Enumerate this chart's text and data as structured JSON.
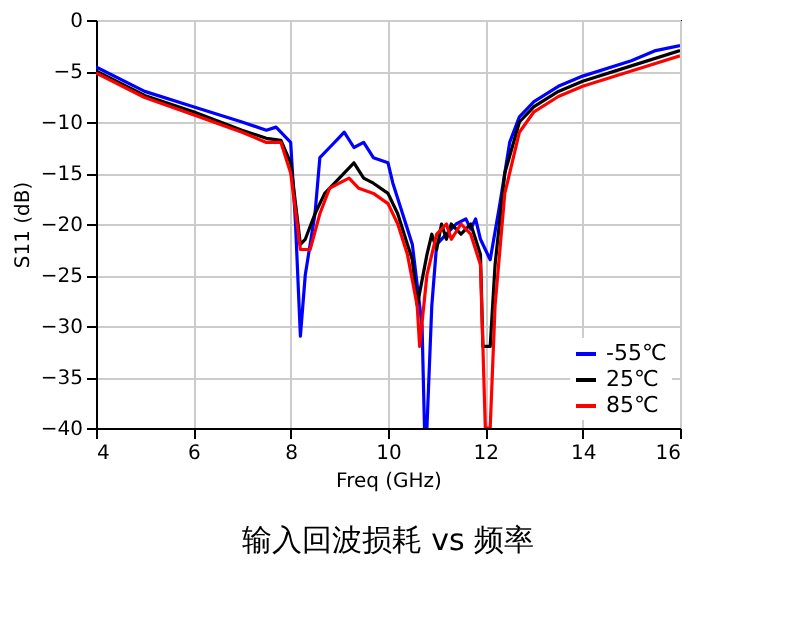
{
  "chart_data": {
    "type": "line",
    "title": "输入回波损耗 vs 频率",
    "xlabel": "Freq (GHz)",
    "ylabel": "S11 (dB)",
    "xlim": [
      4,
      16
    ],
    "xticks": [
      4,
      6,
      8,
      10,
      12,
      14,
      16
    ],
    "ylim": [
      -40,
      0
    ],
    "yticks": [
      -40,
      -35,
      -30,
      -25,
      -20,
      -15,
      -10,
      -5,
      0
    ],
    "grid": true,
    "legend": "bottom right",
    "line_style": "solid",
    "marker": "none",
    "series": [
      {
        "name": "-55℃",
        "color": "#0000ff",
        "x": [
          4,
          5,
          6,
          7,
          7.5,
          7.7,
          8,
          8.05,
          8.1,
          8.2,
          8.3,
          8.5,
          8.6,
          8.8,
          9,
          9.1,
          9.3,
          9.5,
          9.7,
          10,
          10.1,
          10.3,
          10.5,
          10.7,
          10.75,
          10.8,
          10.9,
          11,
          11.2,
          11.4,
          11.6,
          11.7,
          11.8,
          11.9,
          12,
          12.1,
          12.3,
          12.5,
          12.7,
          13,
          13.5,
          14,
          15,
          15.5,
          16
        ],
        "values": [
          -4.6,
          -7,
          -8.5,
          -10,
          -10.8,
          -10.5,
          -12,
          -16,
          -20,
          -31,
          -25,
          -19,
          -13.5,
          -12.5,
          -11.5,
          -11,
          -12.5,
          -12,
          -13.5,
          -14,
          -16,
          -19,
          -22,
          -30,
          -40,
          -40,
          -28,
          -22,
          -21,
          -20,
          -19.5,
          -20.5,
          -19.5,
          -21.5,
          -22.5,
          -23.5,
          -18,
          -12,
          -9.5,
          -8,
          -6.5,
          -5.5,
          -4,
          -3,
          -2.5
        ]
      },
      {
        "name": "25℃",
        "color": "#000000",
        "x": [
          4,
          5,
          6,
          7,
          7.5,
          7.8,
          8,
          8.1,
          8.2,
          8.3,
          8.5,
          8.7,
          9,
          9.3,
          9.5,
          9.7,
          10,
          10.2,
          10.4,
          10.5,
          10.6,
          10.7,
          10.8,
          10.9,
          11,
          11.1,
          11.2,
          11.3,
          11.5,
          11.7,
          11.9,
          11.95,
          12.1,
          12.2,
          12.4,
          12.7,
          13,
          13.5,
          14,
          15,
          16
        ],
        "values": [
          -5,
          -7.4,
          -9,
          -10.8,
          -11.6,
          -11.8,
          -14,
          -18,
          -22,
          -21.5,
          -19,
          -17,
          -15.5,
          -14,
          -15.5,
          -16,
          -17,
          -19,
          -22,
          -23.5,
          -28,
          -25.5,
          -23,
          -21,
          -22.5,
          -20,
          -21.5,
          -20,
          -21,
          -20,
          -23,
          -32,
          -32,
          -24,
          -15,
          -10,
          -8.5,
          -7,
          -6,
          -4.5,
          -3
        ]
      },
      {
        "name": "85℃",
        "color": "#ff0000",
        "x": [
          4,
          5,
          6,
          7,
          7.5,
          7.8,
          8,
          8.2,
          8.4,
          8.6,
          8.8,
          9,
          9.2,
          9.4,
          9.7,
          10,
          10.2,
          10.4,
          10.6,
          10.65,
          10.8,
          11,
          11.2,
          11.3,
          11.5,
          11.7,
          11.9,
          12,
          12.1,
          12.2,
          12.4,
          12.7,
          13,
          13.5,
          14,
          15,
          16
        ],
        "values": [
          -5.2,
          -7.6,
          -9.3,
          -11,
          -12,
          -12,
          -15,
          -22.5,
          -22.5,
          -19,
          -16.5,
          -16,
          -15.5,
          -16.5,
          -17,
          -18,
          -20,
          -23,
          -28,
          -32,
          -25,
          -21,
          -20,
          -21.5,
          -20,
          -21,
          -24,
          -40,
          -40,
          -28,
          -17,
          -11,
          -9,
          -7.5,
          -6.5,
          -5,
          -3.5
        ]
      }
    ]
  }
}
